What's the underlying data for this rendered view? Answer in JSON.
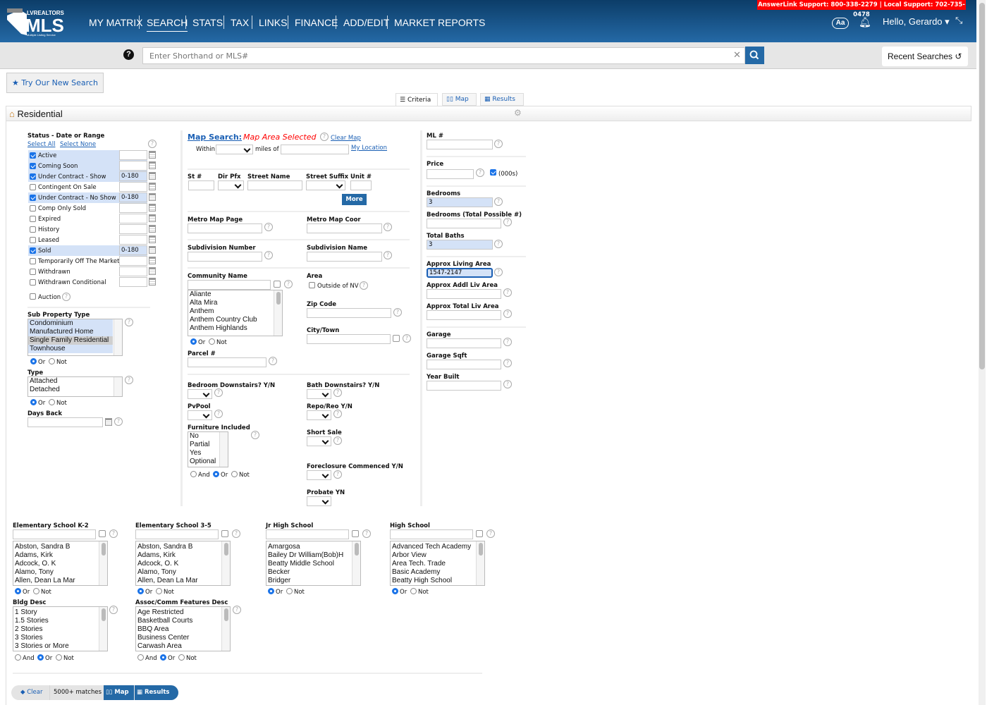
{
  "header": {
    "logo_text": "LVREALTORS MLS Multiple Listing Service",
    "support": "AnswerLink Support: 800-338-2279 | Local Support: 702-735-0478",
    "nav": [
      "MY MATRIX",
      "SEARCH",
      "STATS",
      "TAX",
      "LINKS",
      "FINANCE",
      "ADD/EDIT",
      "MARKET REPORTS"
    ],
    "active_nav": "SEARCH",
    "font_button": "Aa",
    "greeting": "Hello, Gerardo",
    "brand_color": "#1c5a94"
  },
  "search": {
    "placeholder": "Enter Shorthand or MLS#",
    "recent": "Recent Searches"
  },
  "try_new": "Try Our New Search",
  "tabs": {
    "criteria": "Criteria",
    "map": "Map",
    "results": "Results"
  },
  "section_title": "Residential",
  "status": {
    "label": "Status - Date or Range",
    "select_all": "Select All",
    "select_none": "Select None",
    "items": [
      {
        "label": "Active",
        "checked": true,
        "value": ""
      },
      {
        "label": "Coming Soon",
        "checked": true,
        "value": ""
      },
      {
        "label": "Under Contract - Show",
        "checked": true,
        "value": "0-180"
      },
      {
        "label": "Contingent On Sale",
        "checked": false,
        "value": ""
      },
      {
        "label": "Under Contract - No Show",
        "checked": true,
        "value": "0-180"
      },
      {
        "label": "Comp Only Sold",
        "checked": false,
        "value": ""
      },
      {
        "label": "Expired",
        "checked": false,
        "value": ""
      },
      {
        "label": "History",
        "checked": false,
        "value": ""
      },
      {
        "label": "Leased",
        "checked": false,
        "value": ""
      },
      {
        "label": "Sold",
        "checked": true,
        "value": "0-180"
      },
      {
        "label": "Temporarily Off The Market",
        "checked": false,
        "value": ""
      },
      {
        "label": "Withdrawn",
        "checked": false,
        "value": ""
      },
      {
        "label": "Withdrawn Conditional",
        "checked": false,
        "value": ""
      }
    ],
    "auction": "Auction"
  },
  "sub_property": {
    "label": "Sub Property Type",
    "options": [
      "Condominium",
      "Manufactured Home",
      "Single Family Residential",
      "Townhouse"
    ]
  },
  "type": {
    "label": "Type",
    "options": [
      "Attached",
      "Detached"
    ]
  },
  "days_back": "Days Back",
  "radio": {
    "and": "And",
    "or": "Or",
    "not": "Not"
  },
  "map_search": {
    "label": "Map Search:",
    "status": "Map Area Selected",
    "clear": "Clear Map",
    "within": "Within",
    "miles_of": "miles of",
    "my_location": "My Location"
  },
  "address": {
    "st": "St #",
    "dir": "Dir Pfx",
    "street": "Street Name",
    "suffix": "Street Suffix",
    "unit": "Unit #",
    "more": "More"
  },
  "fields": {
    "metro_page": "Metro Map Page",
    "metro_coor": "Metro Map Coor",
    "sub_num": "Subdivision Number",
    "sub_name": "Subdivision Name",
    "community": "Community Name",
    "area": "Area",
    "outside_nv": "Outside of NV",
    "zip": "Zip Code",
    "city": "City/Town",
    "parcel": "Parcel #",
    "bed_down": "Bedroom Downstairs? Y/N",
    "bath_down": "Bath Downstairs? Y/N",
    "pool": "PvPool",
    "repo": "Repo/Reo Y/N",
    "furniture": "Furniture Included",
    "short_sale": "Short Sale",
    "foreclosure": "Foreclosure Commenced Y/N",
    "probate": "Probate YN"
  },
  "community_options": [
    "Aliante",
    "Alta Mira",
    "Anthem",
    "Anthem Country Club",
    "Anthem Highlands"
  ],
  "furniture_options": [
    "No",
    "Partial",
    "Yes",
    "Optional"
  ],
  "right": {
    "ml": "ML #",
    "price": "Price",
    "thousands": "(000s)",
    "bedrooms": "Bedrooms",
    "bedrooms_val": "3",
    "bedrooms_total": "Bedrooms (Total Possible #)",
    "baths": "Total Baths",
    "baths_val": "3",
    "living": "Approx Living Area",
    "living_val": "1547-2147",
    "addl": "Approx Addl Liv Area",
    "total": "Approx Total Liv Area",
    "garage": "Garage",
    "garage_sqft": "Garage Sqft",
    "year": "Year Built"
  },
  "schools": [
    {
      "label": "Elementary School K-2",
      "options": [
        "Abston, Sandra B",
        "Adams, Kirk",
        "Adcock, O. K",
        "Alamo, Tony",
        "Allen, Dean La Mar"
      ]
    },
    {
      "label": "Elementary School 3-5",
      "options": [
        "Abston, Sandra B",
        "Adams, Kirk",
        "Adcock, O. K",
        "Alamo, Tony",
        "Allen, Dean La Mar"
      ]
    },
    {
      "label": "Jr High School",
      "options": [
        "Amargosa",
        "Bailey Dr William(Bob)H",
        "Beatty Middle School",
        "Becker",
        "Bridger"
      ]
    },
    {
      "label": "High School",
      "options": [
        "Advanced Tech Academy",
        "Arbor View",
        "Area Tech. Trade",
        "Basic Academy",
        "Beatty High School"
      ]
    }
  ],
  "bldg": {
    "label": "Bldg Desc",
    "options": [
      "1 Story",
      "1.5 Stories",
      "2 Stories",
      "3 Stories",
      "3 Stories or More"
    ]
  },
  "assoc": {
    "label": "Assoc/Comm Features Desc",
    "options": [
      "Age Restricted",
      "Basketball Courts",
      "BBQ Area",
      "Business Center",
      "Carwash Area"
    ]
  },
  "footer": {
    "clear": "Clear",
    "matches": "5000+ matches",
    "map": "Map",
    "results": "Results"
  }
}
